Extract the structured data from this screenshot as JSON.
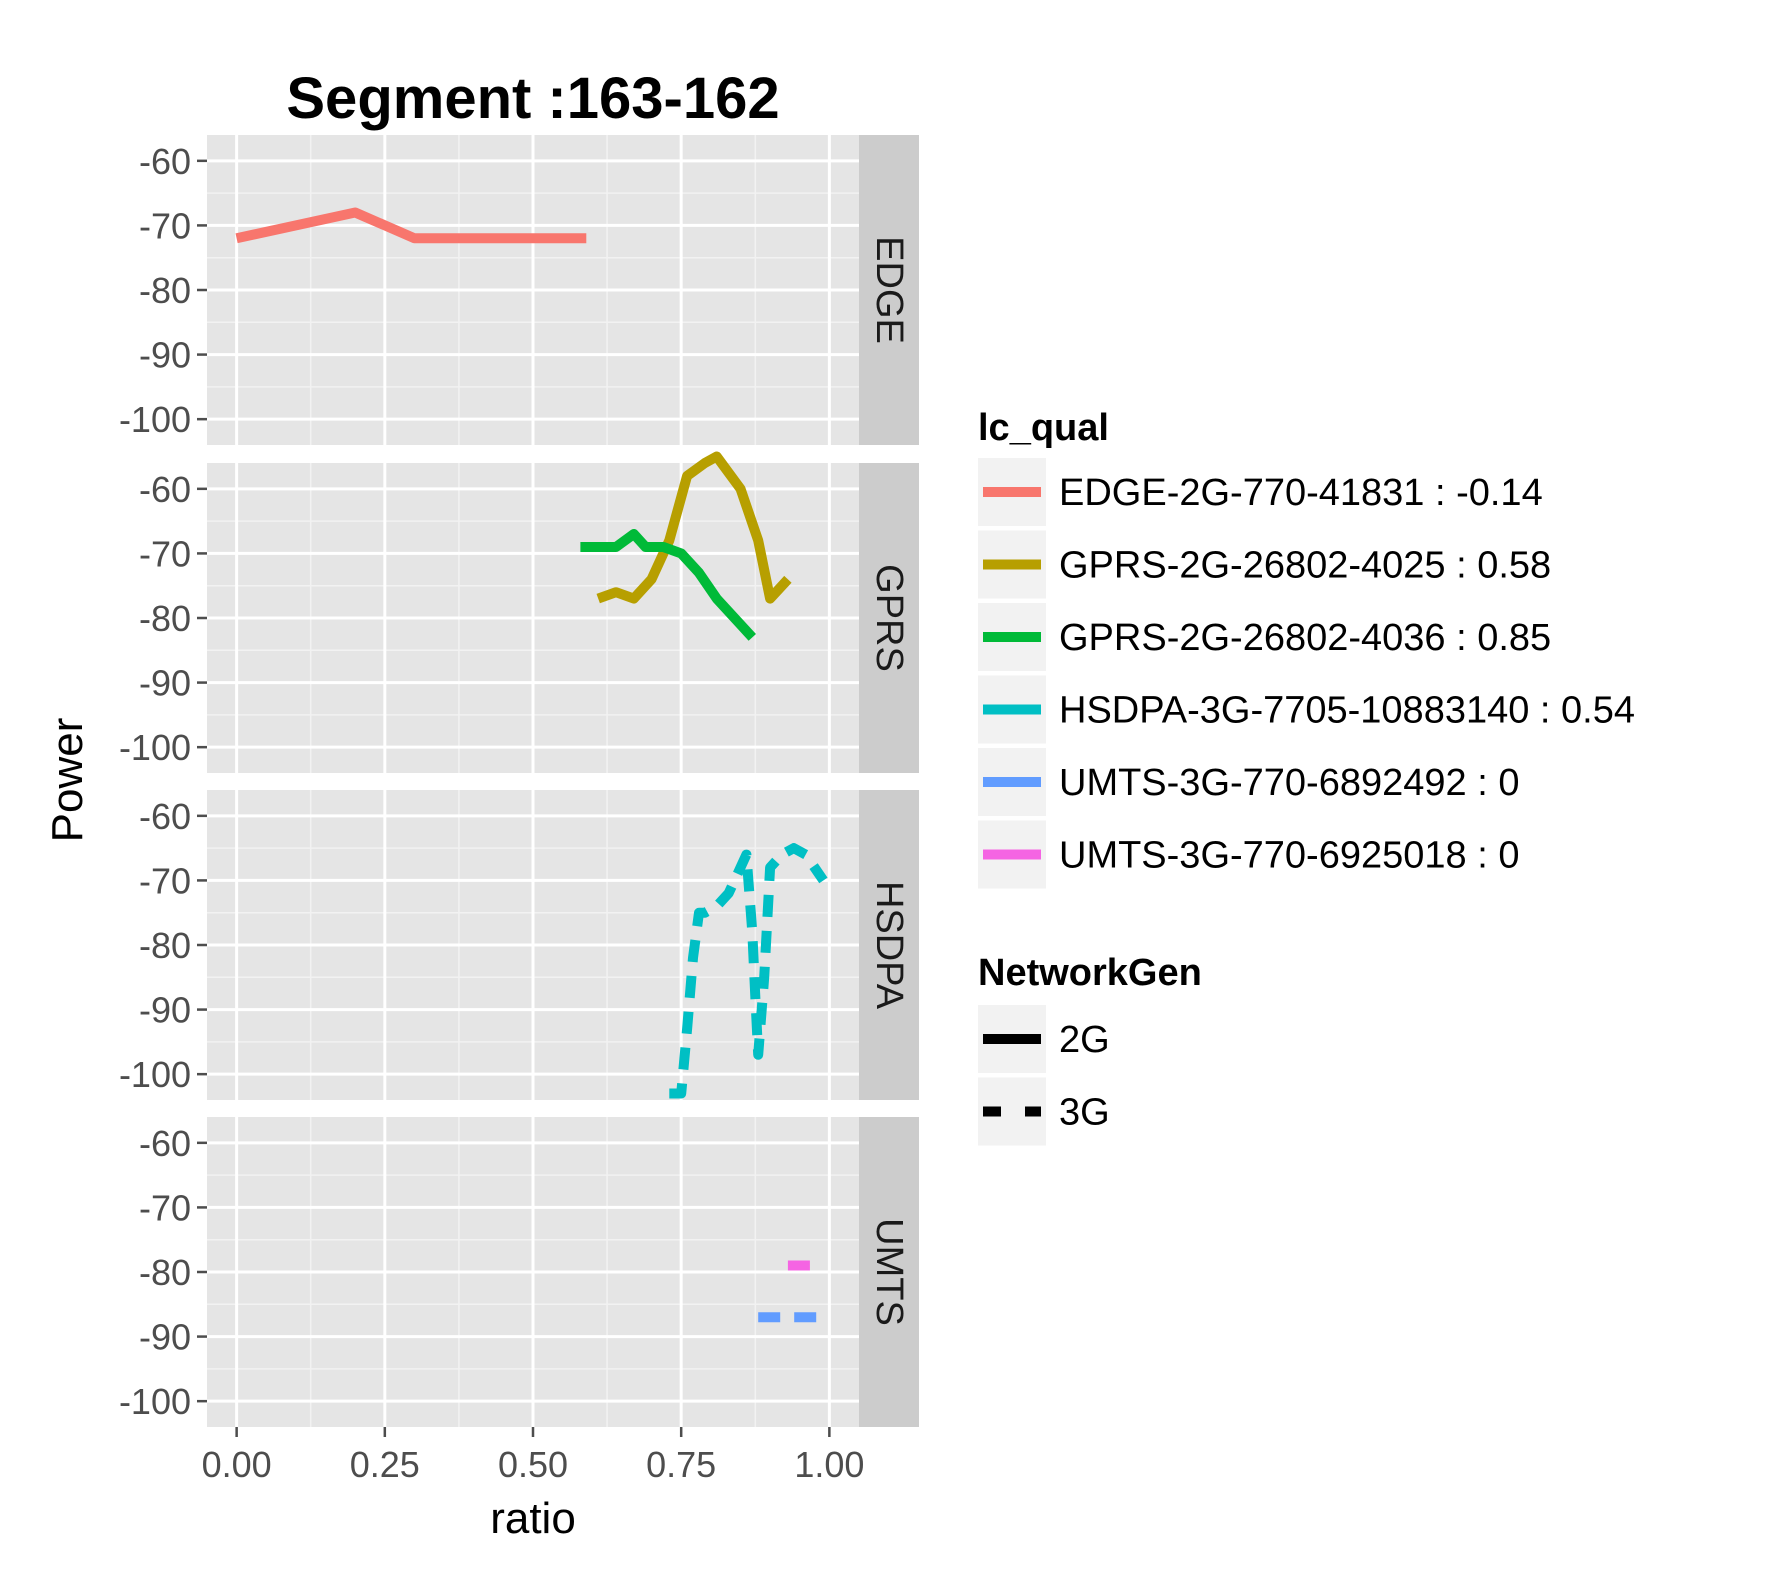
{
  "chart_data": {
    "type": "line",
    "title": "Segment :163-162",
    "xlabel": "ratio",
    "ylabel": "Power",
    "xlim": [
      -0.05,
      1.05
    ],
    "ylim": [
      -104,
      -56
    ],
    "x_ticks": [
      "0.00",
      "0.25",
      "0.50",
      "0.75",
      "1.00"
    ],
    "x_tick_values": [
      0,
      0.25,
      0.5,
      0.75,
      1.0
    ],
    "y_ticks": [
      "-60",
      "-70",
      "-80",
      "-90",
      "-100"
    ],
    "y_tick_values": [
      -60,
      -70,
      -80,
      -90,
      -100
    ],
    "facets": [
      "EDGE",
      "GPRS",
      "HSDPA",
      "UMTS"
    ],
    "grid": true,
    "legend_position": "right",
    "series": [
      {
        "name": "EDGE-2G-770-41831 : -0.14",
        "facet": "EDGE",
        "network": "2G",
        "color": "#F8766D",
        "x": [
          0.0,
          0.2,
          0.3,
          0.59
        ],
        "y": [
          -72,
          -68,
          -72,
          -72
        ]
      },
      {
        "name": "GPRS-2G-26802-4025 : 0.58",
        "facet": "GPRS",
        "network": "2G",
        "color": "#B79F00",
        "x": [
          0.61,
          0.64,
          0.67,
          0.7,
          0.73,
          0.76,
          0.79,
          0.81,
          0.85,
          0.88,
          0.9,
          0.93
        ],
        "y": [
          -77,
          -76,
          -77,
          -74,
          -68,
          -58,
          -56,
          -55,
          -60,
          -68,
          -77,
          -74
        ]
      },
      {
        "name": "GPRS-2G-26802-4036 : 0.85",
        "facet": "GPRS",
        "network": "2G",
        "color": "#00BA38",
        "x": [
          0.58,
          0.64,
          0.67,
          0.69,
          0.72,
          0.75,
          0.78,
          0.81,
          0.85,
          0.87
        ],
        "y": [
          -69,
          -69,
          -67,
          -69,
          -69,
          -70,
          -73,
          -77,
          -81,
          -83
        ]
      },
      {
        "name": "HSDPA-3G-7705-10883140 : 0.54",
        "facet": "HSDPA",
        "network": "3G",
        "color": "#00BFC4",
        "x": [
          0.73,
          0.75,
          0.76,
          0.77,
          0.78,
          0.79,
          0.81,
          0.83,
          0.85,
          0.86,
          0.87,
          0.875,
          0.88,
          0.89,
          0.9,
          0.92,
          0.94,
          0.96,
          0.99
        ],
        "y": [
          -103,
          -103,
          -93,
          -82,
          -75,
          -75,
          -74,
          -72,
          -68,
          -66,
          -78,
          -88,
          -97,
          -85,
          -68,
          -66,
          -65,
          -66,
          -70
        ]
      },
      {
        "name": "UMTS-3G-770-6892492 : 0",
        "facet": "UMTS",
        "network": "3G",
        "color": "#619CFF",
        "x": [
          0.88,
          0.99
        ],
        "y": [
          -87,
          -87
        ]
      },
      {
        "name": "UMTS-3G-770-6925018 : 0",
        "facet": "UMTS",
        "network": "3G",
        "color": "#F564E3",
        "x": [
          0.93,
          0.97
        ],
        "y": [
          -79,
          -79
        ]
      }
    ],
    "legends": [
      {
        "title": "lc_qual",
        "entries": [
          {
            "label": "EDGE-2G-770-41831 : -0.14",
            "color": "#F8766D"
          },
          {
            "label": "GPRS-2G-26802-4025 : 0.58",
            "color": "#B79F00"
          },
          {
            "label": "GPRS-2G-26802-4036 : 0.85",
            "color": "#00BA38"
          },
          {
            "label": "HSDPA-3G-7705-10883140 : 0.54",
            "color": "#00BFC4"
          },
          {
            "label": "UMTS-3G-770-6892492 : 0",
            "color": "#619CFF"
          },
          {
            "label": "UMTS-3G-770-6925018 : 0",
            "color": "#F564E3"
          }
        ]
      },
      {
        "title": "NetworkGen",
        "entries": [
          {
            "label": "2G",
            "style": "solid"
          },
          {
            "label": "3G",
            "style": "dashed"
          }
        ]
      }
    ]
  }
}
